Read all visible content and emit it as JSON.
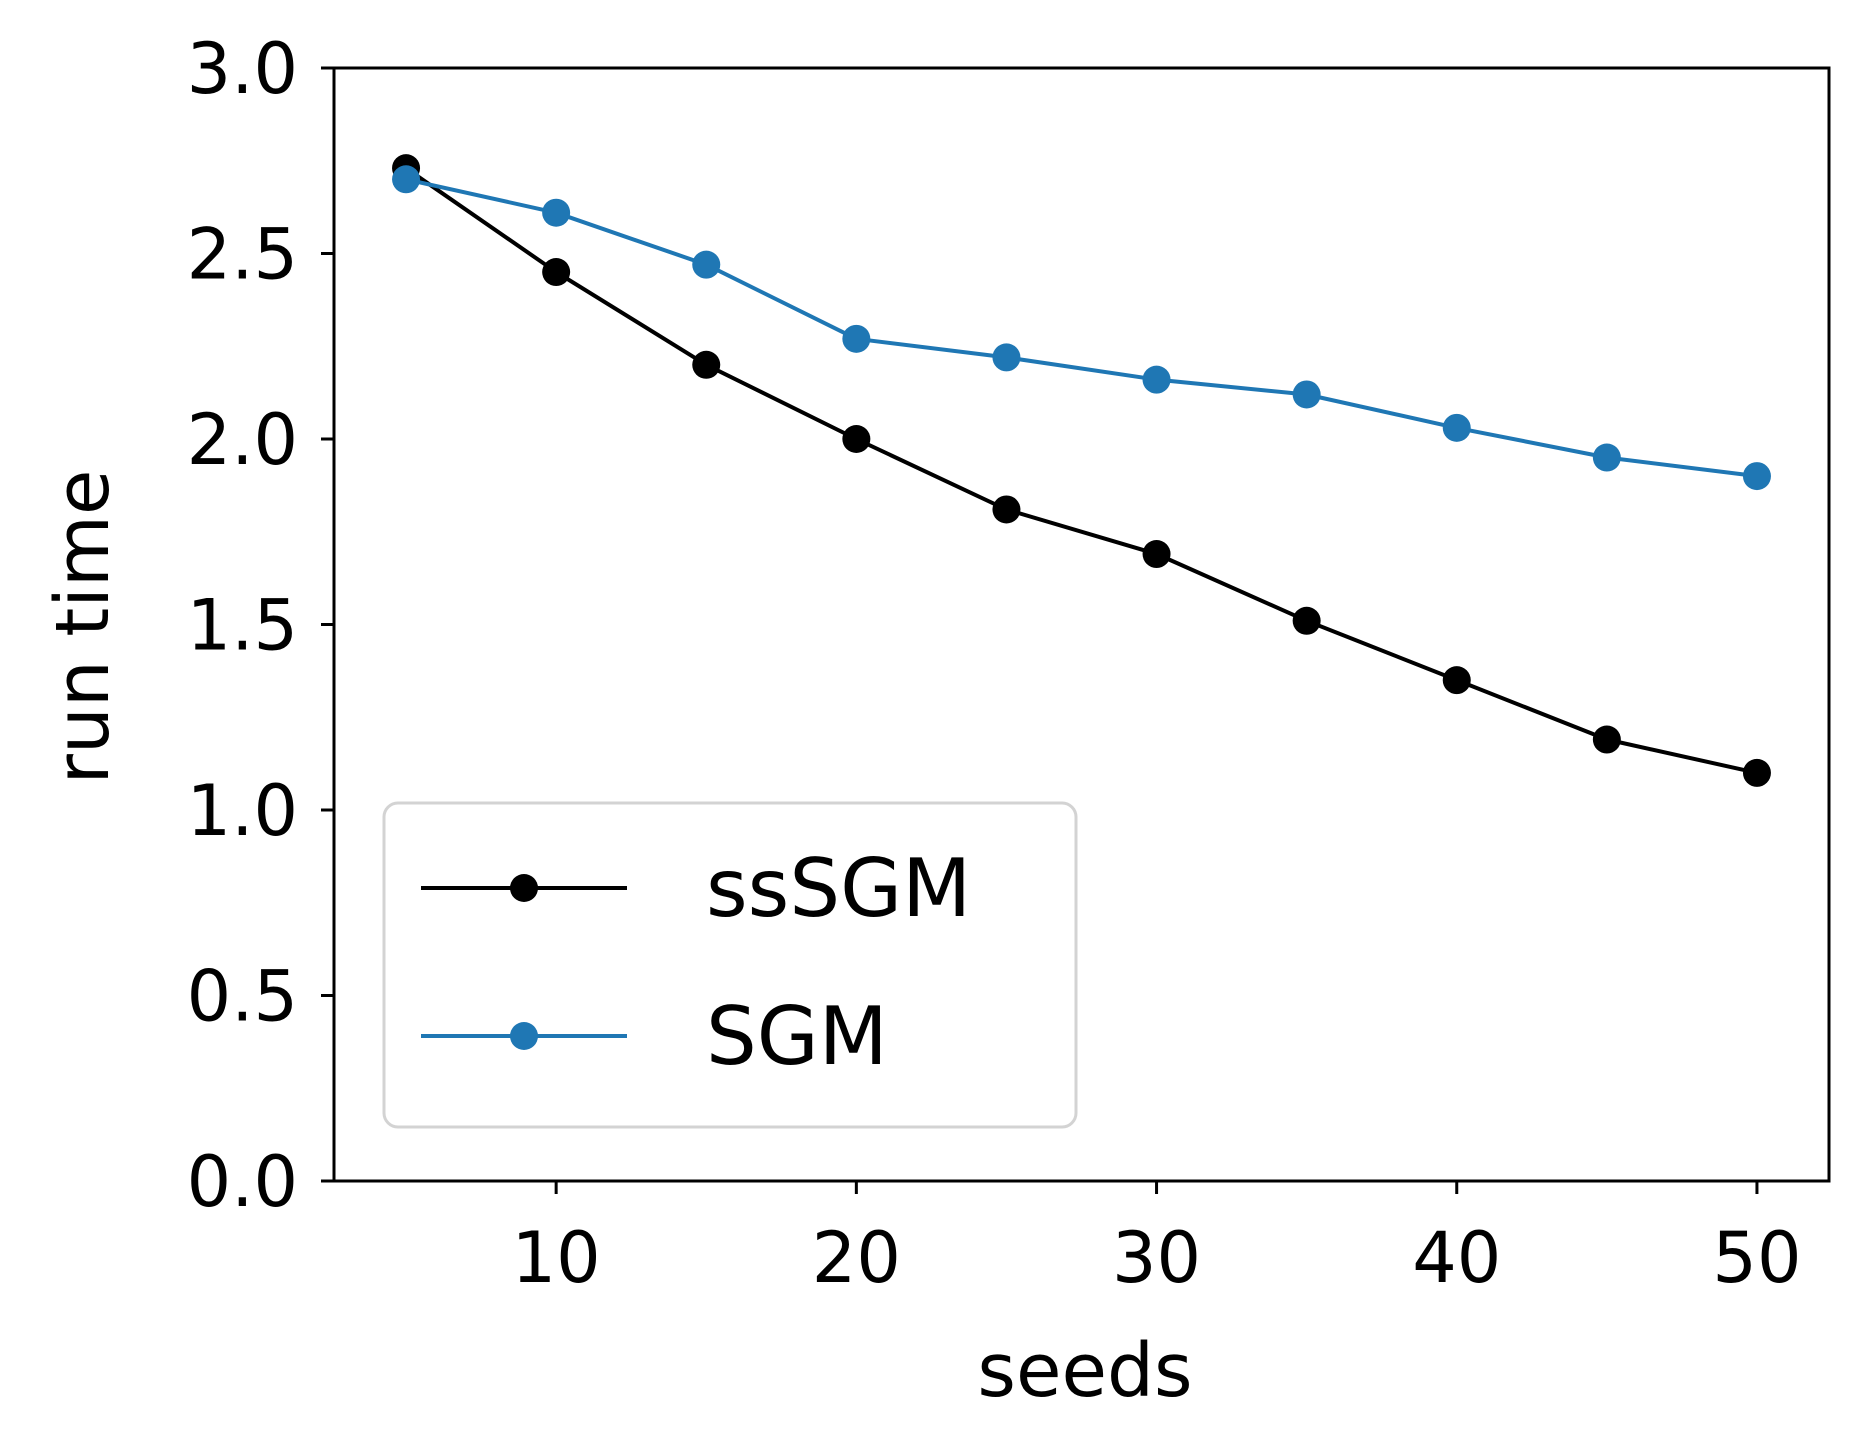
{
  "chart_data": {
    "type": "line",
    "title": "",
    "xlabel": "seeds",
    "ylabel": "run time",
    "xlim": [
      2.6,
      52.4
    ],
    "ylim": [
      0.0,
      3.0
    ],
    "x_ticks": [
      10,
      20,
      30,
      40,
      50
    ],
    "x_tick_labels": [
      "10",
      "20",
      "30",
      "40",
      "50"
    ],
    "y_ticks": [
      0.0,
      0.5,
      1.0,
      1.5,
      2.0,
      2.5,
      3.0
    ],
    "y_tick_labels": [
      "0.0",
      "0.5",
      "1.0",
      "1.5",
      "2.0",
      "2.5",
      "3.0"
    ],
    "grid": false,
    "legend_position": "lower-left",
    "x": [
      5,
      10,
      15,
      20,
      25,
      30,
      35,
      40,
      45,
      50
    ],
    "series": [
      {
        "name": "ssSGM",
        "color": "#000000",
        "marker": "circle",
        "values": [
          2.73,
          2.45,
          2.2,
          2.0,
          1.81,
          1.69,
          1.51,
          1.35,
          1.19,
          1.1
        ]
      },
      {
        "name": "SGM",
        "color": "#1f77b4",
        "marker": "circle",
        "values": [
          2.7,
          2.61,
          2.47,
          2.27,
          2.22,
          2.16,
          2.12,
          2.03,
          1.95,
          1.9
        ]
      }
    ]
  }
}
